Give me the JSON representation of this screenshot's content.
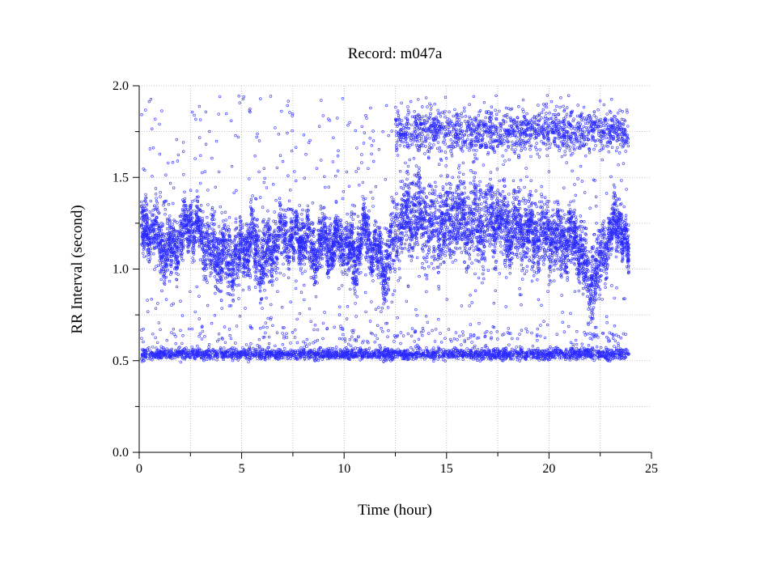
{
  "chart_data": {
    "type": "scatter",
    "title": "Record:  m047a",
    "xlabel": "Time (hour)",
    "ylabel": "RR Interval (second)",
    "xlim": [
      0,
      25
    ],
    "ylim": [
      0,
      2.0
    ],
    "xticks": [
      0,
      5,
      10,
      15,
      20,
      25
    ],
    "xtick_labels": [
      "0",
      "5",
      "10",
      "15",
      "20",
      "25"
    ],
    "yticks": [
      0.0,
      0.5,
      1.0,
      1.5,
      2.0
    ],
    "ytick_labels": [
      "0.0",
      "0.5",
      "1.0",
      "1.5",
      "2.0"
    ],
    "grid": true,
    "marker_color": "#2a2aff",
    "series": [
      {
        "x_range": [
          0.1,
          23.9
        ],
        "main_band": {
          "x": [
            0.1,
            0.5,
            1,
            1.5,
            2,
            2.5,
            3,
            3.5,
            4,
            4.5,
            5,
            5.5,
            6,
            6.5,
            7,
            7.5,
            8,
            8.5,
            9,
            9.5,
            10,
            10.5,
            11,
            11.5,
            12,
            12.5,
            13,
            13.5,
            14,
            14.5,
            15,
            15.5,
            16,
            16.5,
            17,
            17.5,
            18,
            18.5,
            19,
            19.5,
            20,
            20.5,
            21,
            21.5,
            22,
            22.5,
            23,
            23.5,
            23.9
          ],
          "center": [
            1.2,
            1.22,
            1.15,
            1.1,
            1.18,
            1.25,
            1.2,
            1.1,
            1.08,
            1.05,
            1.1,
            1.15,
            1.05,
            1.1,
            1.2,
            1.15,
            1.18,
            1.1,
            1.15,
            1.12,
            1.15,
            1.05,
            1.2,
            1.1,
            1.0,
            1.2,
            1.28,
            1.3,
            1.25,
            1.22,
            1.25,
            1.28,
            1.25,
            1.22,
            1.25,
            1.28,
            1.2,
            1.22,
            1.2,
            1.18,
            1.2,
            1.15,
            1.18,
            1.12,
            0.9,
            1.05,
            1.2,
            1.25,
            1.05
          ],
          "spread": [
            0.12,
            0.12,
            0.15,
            0.15,
            0.12,
            0.12,
            0.12,
            0.15,
            0.15,
            0.15,
            0.12,
            0.15,
            0.15,
            0.15,
            0.12,
            0.12,
            0.12,
            0.15,
            0.12,
            0.12,
            0.12,
            0.15,
            0.1,
            0.12,
            0.15,
            0.18,
            0.18,
            0.2,
            0.18,
            0.18,
            0.18,
            0.18,
            0.18,
            0.18,
            0.18,
            0.18,
            0.18,
            0.15,
            0.15,
            0.15,
            0.15,
            0.15,
            0.15,
            0.15,
            0.2,
            0.15,
            0.12,
            0.12,
            0.1
          ]
        },
        "low_band": {
          "center": 0.535,
          "spread": 0.03
        },
        "high_cluster": {
          "x": [
            12.5,
            23.9
          ],
          "center": 1.75,
          "spread": 0.1
        },
        "sparse_range": [
          0.6,
          1.95
        ]
      }
    ]
  }
}
